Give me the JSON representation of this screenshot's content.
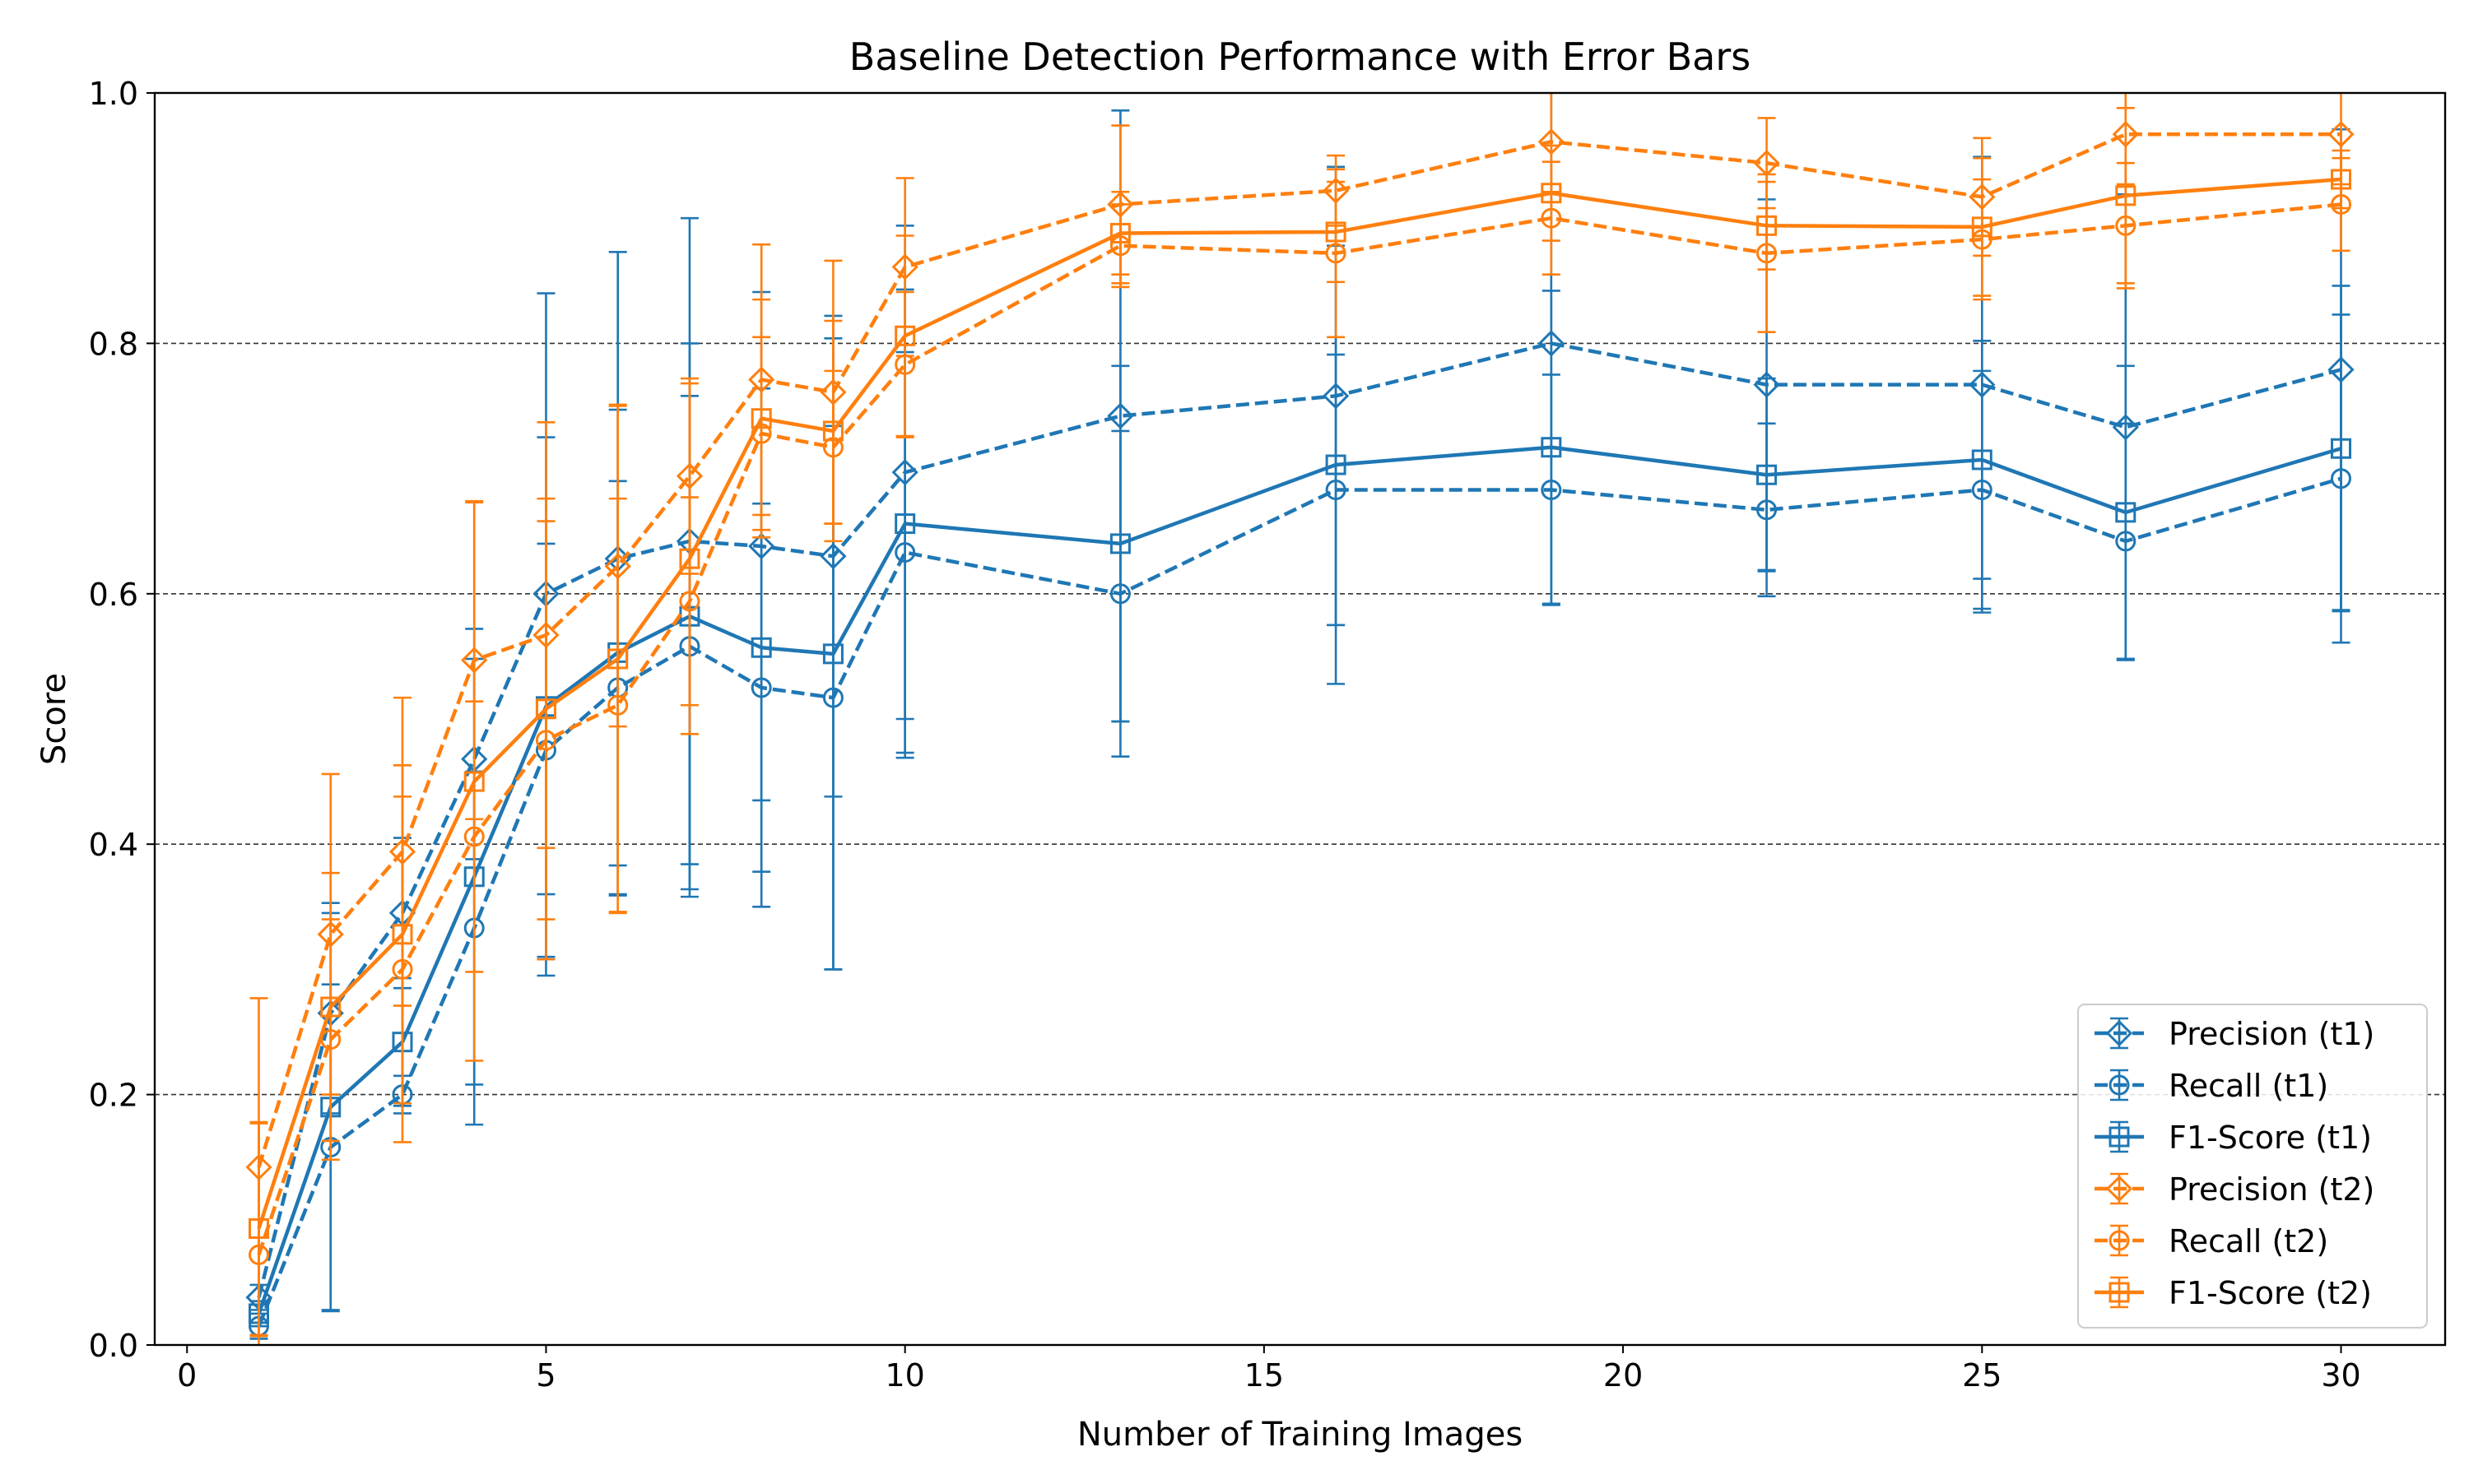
{
  "chart_data": {
    "type": "line",
    "title": "Baseline Detection Performance with Error Bars",
    "xlabel": "Number of Training Images",
    "ylabel": "Score",
    "xlim": [
      -0.45,
      31.45
    ],
    "ylim": [
      0.0,
      1.0
    ],
    "x_ticks": [
      0,
      5,
      10,
      15,
      20,
      25,
      30
    ],
    "y_ticks": [
      0.0,
      0.2,
      0.4,
      0.6,
      0.8,
      1.0
    ],
    "x_tick_labels": [
      "0",
      "5",
      "10",
      "15",
      "20",
      "25",
      "30"
    ],
    "y_tick_labels": [
      "0.0",
      "0.2",
      "0.4",
      "0.6",
      "0.8",
      "1.0"
    ],
    "grid": "horizontal dashed",
    "legend_position": "lower-right",
    "x": [
      1,
      2,
      3,
      4,
      5,
      6,
      7,
      8,
      9,
      10,
      13,
      16,
      19,
      22,
      25,
      27,
      30
    ],
    "series": [
      {
        "name": "Precision (t1)",
        "color": "#1f77b4",
        "linestyle": "dashed",
        "marker": "diamond",
        "values": [
          0.038,
          0.265,
          0.345,
          0.468,
          0.6,
          0.628,
          0.642,
          0.638,
          0.63,
          0.697,
          0.742,
          0.758,
          0.8,
          0.767,
          0.767,
          0.733,
          0.779
        ],
        "errors": [
          0.01,
          0.08,
          0.06,
          0.08,
          0.24,
          0.245,
          0.258,
          0.203,
          0.192,
          0.197,
          0.244,
          0.183,
          0.208,
          0.148,
          0.182,
          0.186,
          0.192
        ]
      },
      {
        "name": "Recall (t1)",
        "color": "#1f77b4",
        "linestyle": "dashed",
        "marker": "circle",
        "values": [
          0.015,
          0.158,
          0.2,
          0.333,
          0.475,
          0.525,
          0.558,
          0.525,
          0.517,
          0.633,
          0.6,
          0.683,
          0.683,
          0.667,
          0.683,
          0.642,
          0.692
        ],
        "errors": [
          0.01,
          0.13,
          0.015,
          0.125,
          0.165,
          0.165,
          0.2,
          0.147,
          0.217,
          0.16,
          0.13,
          0.108,
          0.092,
          0.069,
          0.095,
          0.094,
          0.131
        ]
      },
      {
        "name": "F1-Score (t1)",
        "color": "#1f77b4",
        "linestyle": "solid",
        "marker": "square",
        "values": [
          0.025,
          0.19,
          0.242,
          0.374,
          0.51,
          0.553,
          0.582,
          0.557,
          0.552,
          0.656,
          0.64,
          0.703,
          0.717,
          0.695,
          0.707,
          0.665,
          0.716
        ],
        "errors": [
          0.01,
          0.163,
          0.051,
          0.198,
          0.215,
          0.194,
          0.218,
          0.207,
          0.252,
          0.187,
          0.142,
          0.175,
          0.125,
          0.077,
          0.095,
          0.117,
          0.13
        ]
      },
      {
        "name": "Precision (t2)",
        "color": "#ff7f0e",
        "linestyle": "dashed",
        "marker": "diamond",
        "values": [
          0.142,
          0.328,
          0.394,
          0.547,
          0.567,
          0.622,
          0.694,
          0.771,
          0.761,
          0.861,
          0.911,
          0.922,
          0.961,
          0.944,
          0.917,
          0.967,
          0.967
        ],
        "errors": [
          0.135,
          0.128,
          0.123,
          0.127,
          0.17,
          0.128,
          0.078,
          0.108,
          0.105,
          0.071,
          0.063,
          0.028,
          0.04,
          0.036,
          0.047,
          0.04,
          0.04
        ]
      },
      {
        "name": "Recall (t2)",
        "color": "#ff7f0e",
        "linestyle": "dashed",
        "marker": "circle",
        "values": [
          0.072,
          0.244,
          0.3,
          0.406,
          0.483,
          0.511,
          0.594,
          0.728,
          0.717,
          0.783,
          0.878,
          0.872,
          0.9,
          0.872,
          0.883,
          0.894,
          0.911
        ],
        "errors": [
          0.105,
          0.096,
          0.138,
          0.108,
          0.175,
          0.165,
          0.083,
          0.077,
          0.061,
          0.058,
          0.033,
          0.067,
          0.045,
          0.063,
          0.048,
          0.05,
          0.037
        ]
      },
      {
        "name": "F1-Score (t2)",
        "color": "#ff7f0e",
        "linestyle": "solid",
        "marker": "square",
        "values": [
          0.093,
          0.27,
          0.328,
          0.45,
          0.508,
          0.548,
          0.628,
          0.74,
          0.73,
          0.806,
          0.888,
          0.889,
          0.92,
          0.894,
          0.893,
          0.918,
          0.931
        ],
        "errors": [
          0.085,
          0.107,
          0.135,
          0.223,
          0.168,
          0.203,
          0.14,
          0.095,
          0.088,
          0.08,
          0.033,
          0.04,
          0.038,
          0.035,
          0.055,
          0.07,
          0.023
        ]
      }
    ]
  }
}
